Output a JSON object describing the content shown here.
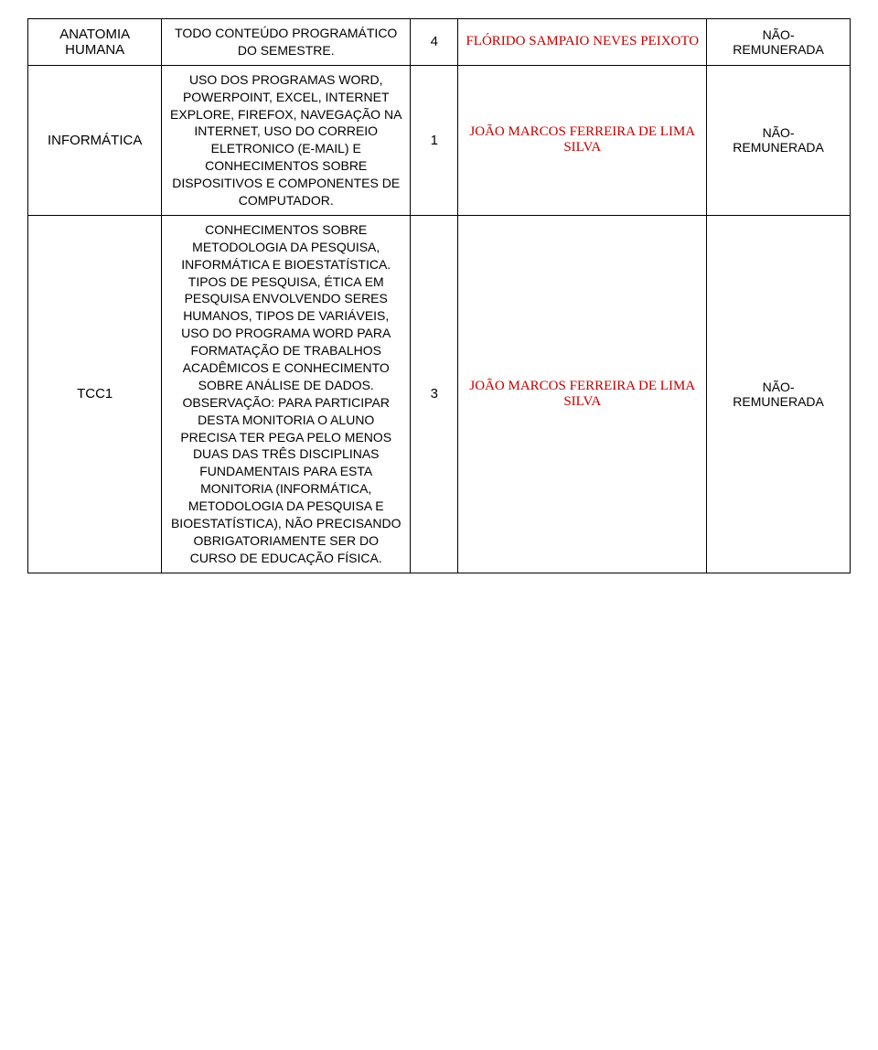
{
  "rows": [
    {
      "subject": "ANATOMIA\nHUMANA",
      "content": "TODO CONTEÚDO PROGRAMÁTICO DO SEMESTRE.",
      "count": "4",
      "teacher": "FLÓRIDO SAMPAIO NEVES PEIXOTO",
      "teacher_style": "red",
      "status": "NÃO-\nREMUNERADA"
    },
    {
      "subject": "INFORMÁTICA",
      "content": "USO DOS PROGRAMAS WORD, POWERPOINT, EXCEL, INTERNET EXPLORE, FIREFOX, NAVEGAÇÃO NA INTERNET, USO DO CORREIO ELETRONICO (E-MAIL) E CONHECIMENTOS SOBRE DISPOSITIVOS E COMPONENTES DE COMPUTADOR.",
      "count": "1",
      "teacher": "JOÃO MARCOS FERREIRA DE LIMA SILVA",
      "teacher_style": "red",
      "status": "NÃO-\nREMUNERADA"
    },
    {
      "subject": "TCC1",
      "content": "CONHECIMENTOS SOBRE METODOLOGIA DA PESQUISA, INFORMÁTICA E BIOESTATÍSTICA. TIPOS DE PESQUISA, ÉTICA EM PESQUISA ENVOLVENDO SERES HUMANOS, TIPOS DE VARIÁVEIS, USO DO PROGRAMA WORD PARA FORMATAÇÃO DE TRABALHOS ACADÊMICOS E CONHECIMENTO SOBRE ANÁLISE DE DADOS. OBSERVAÇÃO: PARA PARTICIPAR DESTA MONITORIA O ALUNO PRECISA TER PEGA PELO MENOS DUAS DAS TRÊS DISCIPLINAS FUNDAMENTAIS PARA ESTA MONITORIA (INFORMÁTICA, METODOLOGIA DA PESQUISA E BIOESTATÍSTICA), NÃO PRECISANDO OBRIGATORIAMENTE SER DO CURSO DE EDUCAÇÃO FÍSICA.",
      "count": "3",
      "teacher": "JOÃO MARCOS FERREIRA DE LIMA SILVA",
      "teacher_style": "red",
      "status": "NÃO-\nREMUNERADA"
    }
  ],
  "colors": {
    "border": "#000000",
    "teacher_red": "#c00000",
    "text": "#000000",
    "background": "#ffffff"
  }
}
